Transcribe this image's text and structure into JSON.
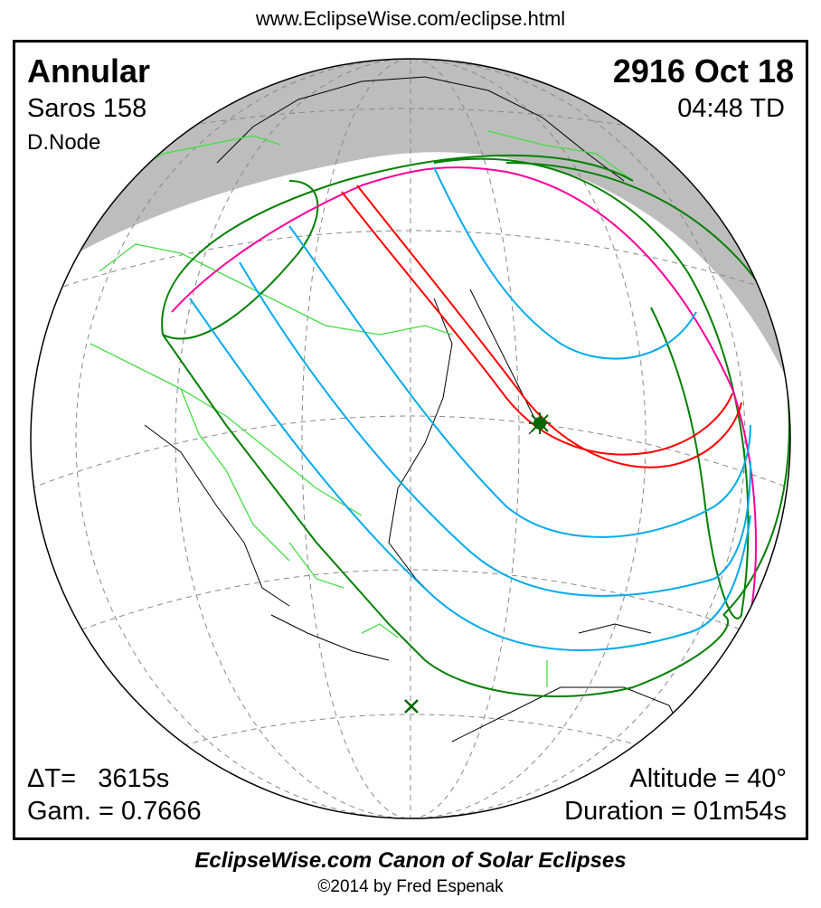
{
  "header": {
    "url": "www.EclipseWise.com/eclipse.html"
  },
  "eclipse": {
    "type": "Annular",
    "saros": "Saros 158",
    "node": "D.Node",
    "date": "2916 Oct 18",
    "time": "04:48 TD",
    "delta_t": "ΔT=   3615s",
    "gamma": "Gam. = 0.7666",
    "altitude": "Altitude = 40°",
    "duration": "Duration = 01m54s"
  },
  "footer": {
    "canon": "EclipseWise.com Canon of Solar Eclipses",
    "copyright": "©2014 by Fred Espenak"
  },
  "colors": {
    "night": "#bdbdbd",
    "central_path": "#ff0000",
    "penumbra_limit": "#ff0099",
    "magnitude_lines": "#00aaee",
    "rise_set_curves": "#008000",
    "borders": "#44dd44"
  },
  "markers": {
    "greatest_eclipse": "star-icon",
    "sub_solar_point": "x-mark-icon"
  }
}
